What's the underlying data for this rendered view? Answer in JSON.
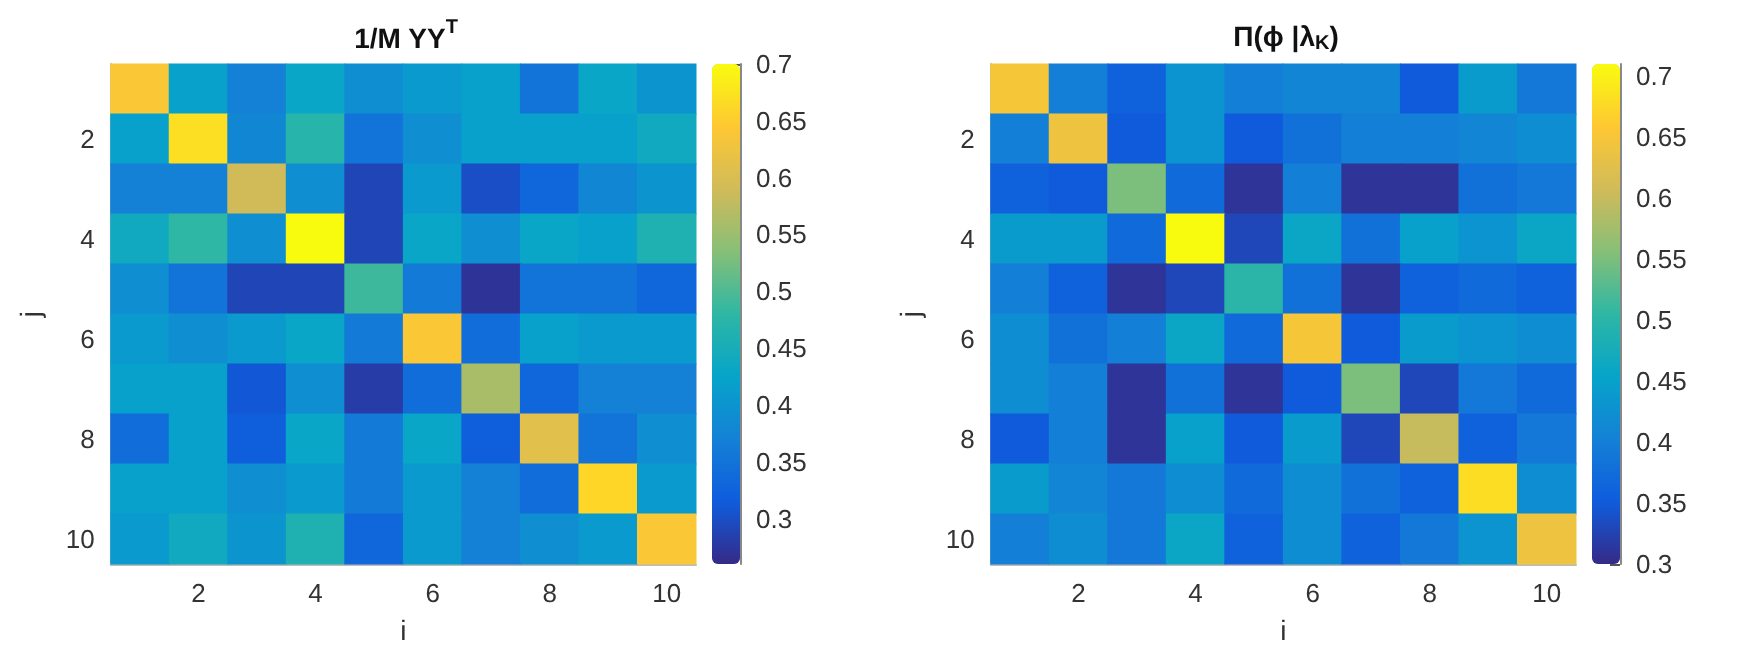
{
  "chart_data": [
    {
      "type": "heatmap",
      "title": "1/M YY$^{T}$",
      "xlabel": "i",
      "ylabel": "j",
      "categories": [
        null,
        "2",
        null,
        "4",
        null,
        "6",
        null,
        "8",
        null,
        "10"
      ],
      "y_categories": [
        null,
        "2",
        null,
        "4",
        null,
        "6",
        null,
        "8",
        null,
        "10"
      ],
      "cells": [
        [
          0.64,
          0.42,
          0.37,
          0.43,
          0.39,
          0.41,
          0.42,
          0.35,
          0.43,
          0.4
        ],
        [
          0.42,
          0.67,
          0.38,
          0.47,
          0.35,
          0.39,
          0.42,
          0.42,
          0.42,
          0.44
        ],
        [
          0.37,
          0.37,
          0.59,
          0.39,
          0.29,
          0.41,
          0.3,
          0.33,
          0.38,
          0.4
        ],
        [
          0.44,
          0.48,
          0.39,
          0.7,
          0.29,
          0.43,
          0.39,
          0.43,
          0.42,
          0.46
        ],
        [
          0.39,
          0.35,
          0.29,
          0.29,
          0.49,
          0.36,
          0.27,
          0.35,
          0.35,
          0.33
        ],
        [
          0.41,
          0.39,
          0.41,
          0.43,
          0.36,
          0.64,
          0.34,
          0.42,
          0.41,
          0.41
        ],
        [
          0.42,
          0.42,
          0.31,
          0.39,
          0.28,
          0.34,
          0.56,
          0.33,
          0.37,
          0.37
        ],
        [
          0.34,
          0.42,
          0.32,
          0.43,
          0.36,
          0.43,
          0.32,
          0.61,
          0.35,
          0.39
        ],
        [
          0.42,
          0.42,
          0.39,
          0.41,
          0.36,
          0.41,
          0.37,
          0.34,
          0.66,
          0.41
        ],
        [
          0.41,
          0.44,
          0.4,
          0.46,
          0.33,
          0.41,
          0.37,
          0.39,
          0.41,
          0.64
        ]
      ],
      "clim": [
        0.26,
        0.7
      ],
      "cticks": [
        0.3,
        0.35,
        0.4,
        0.45,
        0.5,
        0.55,
        0.6,
        0.65,
        0.7
      ]
    },
    {
      "type": "heatmap",
      "title": "Π(ϕ |λ$_{K}$)",
      "xlabel": "i",
      "ylabel": "j",
      "categories": [
        null,
        "2",
        null,
        "4",
        null,
        "6",
        null,
        "8",
        null,
        "10"
      ],
      "y_categories": [
        null,
        "2",
        null,
        "4",
        null,
        "6",
        null,
        "8",
        null,
        "10"
      ],
      "cells": [
        [
          0.65,
          0.4,
          0.36,
          0.43,
          0.4,
          0.41,
          0.41,
          0.35,
          0.44,
          0.39
        ],
        [
          0.4,
          0.64,
          0.35,
          0.43,
          0.35,
          0.38,
          0.4,
          0.4,
          0.41,
          0.42
        ],
        [
          0.36,
          0.35,
          0.55,
          0.37,
          0.31,
          0.4,
          0.31,
          0.31,
          0.38,
          0.39
        ],
        [
          0.44,
          0.44,
          0.37,
          0.71,
          0.33,
          0.46,
          0.38,
          0.45,
          0.43,
          0.46
        ],
        [
          0.4,
          0.36,
          0.31,
          0.33,
          0.5,
          0.38,
          0.31,
          0.36,
          0.37,
          0.36
        ],
        [
          0.42,
          0.38,
          0.4,
          0.46,
          0.37,
          0.65,
          0.35,
          0.44,
          0.43,
          0.42
        ],
        [
          0.42,
          0.4,
          0.31,
          0.38,
          0.31,
          0.35,
          0.55,
          0.33,
          0.39,
          0.37
        ],
        [
          0.35,
          0.4,
          0.31,
          0.45,
          0.35,
          0.44,
          0.33,
          0.6,
          0.36,
          0.39
        ],
        [
          0.44,
          0.41,
          0.39,
          0.42,
          0.37,
          0.42,
          0.38,
          0.36,
          0.68,
          0.42
        ],
        [
          0.4,
          0.42,
          0.39,
          0.46,
          0.36,
          0.42,
          0.36,
          0.39,
          0.43,
          0.64
        ]
      ],
      "clim": [
        0.3,
        0.71
      ],
      "cticks": [
        0.3,
        0.35,
        0.4,
        0.45,
        0.5,
        0.55,
        0.6,
        0.65,
        0.7
      ]
    }
  ]
}
